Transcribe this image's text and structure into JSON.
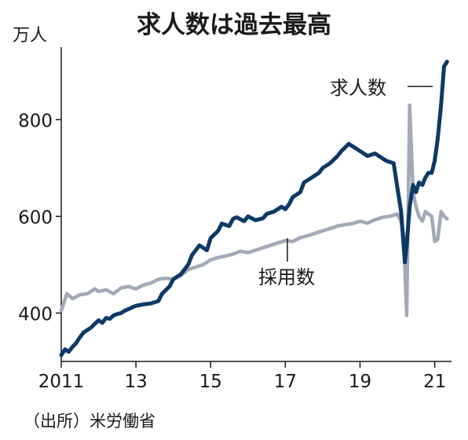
{
  "chart_data": {
    "type": "line",
    "title": "求人数は過去最高",
    "unit_label": "万人",
    "source": "（出所）米労働省",
    "xlim": [
      2011.0,
      2021.45
    ],
    "ylim": [
      300,
      950
    ],
    "x_ticks": [
      {
        "value": 2011,
        "label": "2011"
      },
      {
        "value": 2013,
        "label": "13"
      },
      {
        "value": 2015,
        "label": "15"
      },
      {
        "value": 2017,
        "label": "17"
      },
      {
        "value": 2019,
        "label": "19"
      },
      {
        "value": 2021,
        "label": "21"
      }
    ],
    "y_ticks": [
      {
        "value": 400,
        "label": "400"
      },
      {
        "value": 600,
        "label": "600"
      },
      {
        "value": 800,
        "label": "800"
      }
    ],
    "grid": "y-major-ticks-only",
    "colors": {
      "job_openings": "#0d3a66",
      "hires": "#a3a9b8",
      "axis": "#1a1a1a"
    },
    "series": [
      {
        "name": "求人数",
        "key": "job_openings",
        "x": [
          2011.0,
          2011.1,
          2011.2,
          2011.3,
          2011.4,
          2011.5,
          2011.6,
          2011.7,
          2011.8,
          2011.9,
          2012.0,
          2012.1,
          2012.2,
          2012.3,
          2012.4,
          2012.5,
          2012.6,
          2012.7,
          2012.8,
          2012.9,
          2013.0,
          2013.2,
          2013.4,
          2013.6,
          2013.7,
          2013.9,
          2014.0,
          2014.2,
          2014.4,
          2014.5,
          2014.6,
          2014.7,
          2014.9,
          2015.0,
          2015.2,
          2015.3,
          2015.5,
          2015.6,
          2015.7,
          2015.9,
          2016.0,
          2016.2,
          2016.4,
          2016.5,
          2016.7,
          2016.9,
          2017.0,
          2017.1,
          2017.2,
          2017.4,
          2017.5,
          2017.7,
          2017.9,
          2018.0,
          2018.2,
          2018.4,
          2018.5,
          2018.7,
          2018.9,
          2019.0,
          2019.2,
          2019.4,
          2019.6,
          2019.7,
          2019.9,
          2020.0,
          2020.1,
          2020.2,
          2020.25,
          2020.33,
          2020.42,
          2020.5,
          2020.58,
          2020.67,
          2020.75,
          2020.83,
          2020.92,
          2021.0,
          2021.08,
          2021.17,
          2021.25,
          2021.33
        ],
        "values": [
          313,
          325,
          320,
          330,
          338,
          350,
          360,
          365,
          370,
          378,
          385,
          380,
          390,
          388,
          395,
          398,
          400,
          405,
          408,
          412,
          415,
          418,
          420,
          425,
          440,
          455,
          470,
          480,
          500,
          520,
          530,
          540,
          530,
          555,
          570,
          585,
          580,
          595,
          598,
          590,
          600,
          592,
          596,
          605,
          610,
          620,
          615,
          625,
          640,
          650,
          670,
          680,
          690,
          700,
          710,
          725,
          735,
          750,
          740,
          735,
          725,
          730,
          720,
          715,
          710,
          660,
          610,
          505,
          540,
          620,
          665,
          650,
          670,
          665,
          680,
          690,
          690,
          715,
          760,
          830,
          910,
          920
        ]
      },
      {
        "name": "採用数",
        "key": "hires",
        "x": [
          2011.0,
          2011.15,
          2011.3,
          2011.5,
          2011.7,
          2011.9,
          2012.0,
          2012.2,
          2012.4,
          2012.6,
          2012.8,
          2013.0,
          2013.2,
          2013.4,
          2013.6,
          2013.8,
          2014.0,
          2014.2,
          2014.4,
          2014.6,
          2014.8,
          2015.0,
          2015.2,
          2015.4,
          2015.6,
          2015.8,
          2016.0,
          2016.2,
          2016.4,
          2016.6,
          2016.8,
          2017.0,
          2017.2,
          2017.4,
          2017.6,
          2017.8,
          2018.0,
          2018.2,
          2018.4,
          2018.6,
          2018.8,
          2019.0,
          2019.2,
          2019.4,
          2019.6,
          2019.8,
          2020.0,
          2020.1,
          2020.17,
          2020.25,
          2020.33,
          2020.42,
          2020.5,
          2020.58,
          2020.67,
          2020.75,
          2020.83,
          2020.92,
          2021.0,
          2021.08,
          2021.17,
          2021.25,
          2021.33
        ],
        "values": [
          405,
          440,
          430,
          438,
          440,
          450,
          445,
          448,
          440,
          452,
          455,
          450,
          458,
          462,
          470,
          472,
          470,
          478,
          490,
          495,
          500,
          510,
          515,
          518,
          522,
          528,
          525,
          530,
          535,
          540,
          545,
          550,
          548,
          556,
          560,
          565,
          570,
          575,
          580,
          583,
          585,
          590,
          586,
          593,
          598,
          600,
          605,
          590,
          560,
          395,
          830,
          650,
          620,
          600,
          590,
          610,
          605,
          600,
          548,
          552,
          610,
          600,
          595
        ]
      }
    ],
    "annotations": [
      {
        "text": "求人数",
        "target": "job_openings"
      },
      {
        "text": "採用数",
        "target": "hires"
      }
    ]
  }
}
